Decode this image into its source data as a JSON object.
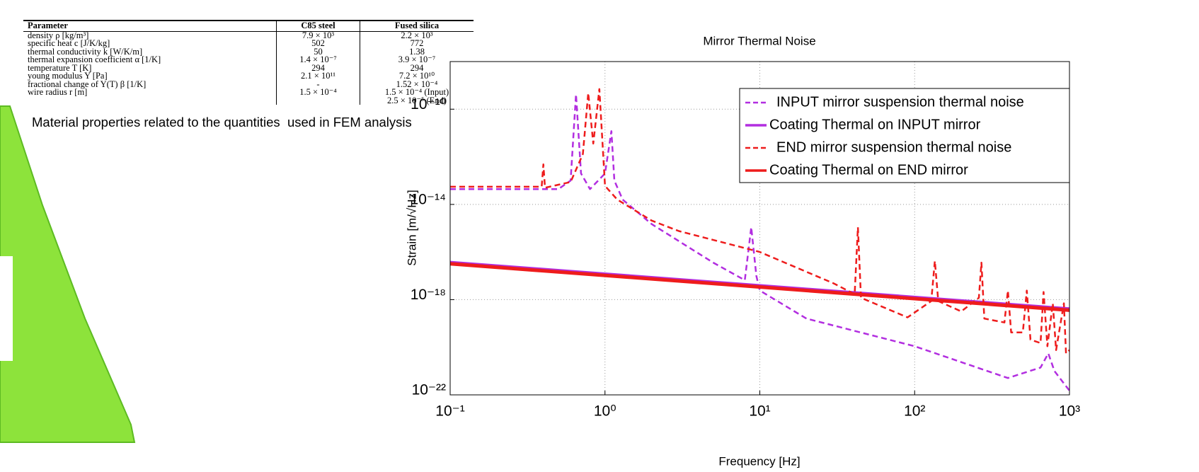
{
  "table": {
    "headers": [
      "Parameter",
      "C85 steel",
      "Fused silica"
    ],
    "rows": [
      [
        "density ρ [kg/m³]",
        "7.9 × 10³",
        "2.2 × 10³"
      ],
      [
        "specific heat c [J/K/kg]",
        "502",
        "772"
      ],
      [
        "thermal conductivity k [W/K/m]",
        "50",
        "1.38"
      ],
      [
        "thermal expansion coefficient α [1/K]",
        "1.4 × 10⁻⁷",
        "3.9 × 10⁻⁷"
      ],
      [
        "temperature T [K]",
        "294",
        "294"
      ],
      [
        "young modulus Y [Pa]",
        "2.1 × 10¹¹",
        "7.2 × 10¹⁰"
      ],
      [
        "fractional change of Y(T) β [1/K]",
        "-",
        "1.52 × 10⁻⁴"
      ],
      [
        "wire radius r [m]",
        "1.5 × 10⁻⁴",
        [
          "1.5 × 10⁻⁴ (Input)",
          "2.5 × 10⁻⁵ (End)"
        ]
      ]
    ]
  },
  "caption": "Material properties related to the quantities  used in FEM analysis",
  "chart_data": {
    "type": "line",
    "title": "Mirror Thermal Noise",
    "x_label": "Frequency [Hz]",
    "y_label": "Strain [m/√Hz]",
    "xscale": "log",
    "yscale": "log",
    "grid": true,
    "legend": "upper right",
    "xlim": [
      0.1,
      1000
    ],
    "ylim": [
      1e-22,
      1e-08
    ],
    "xticks": [
      {
        "value": 0.1,
        "label": "10⁻¹"
      },
      {
        "value": 1,
        "label": "10⁰"
      },
      {
        "value": 10,
        "label": "10¹"
      },
      {
        "value": 100,
        "label": "10²"
      },
      {
        "value": 1000,
        "label": "10³"
      }
    ],
    "yticks": [
      {
        "value": 1e-22,
        "label": "10⁻²²"
      },
      {
        "value": 1e-18,
        "label": "10⁻¹⁸"
      },
      {
        "value": 1e-14,
        "label": "10⁻¹⁴"
      },
      {
        "value": 1e-10,
        "label": "10⁻¹⁰"
      }
    ],
    "series": [
      {
        "name": "INPUT mirror suspension thermal noise",
        "color": "#b22ee0",
        "style": "dashed",
        "x": [
          0.1,
          0.5,
          0.6,
          0.65,
          0.7,
          0.8,
          1.0,
          1.1,
          1.15,
          1.3,
          2,
          5,
          8,
          8.8,
          9.5,
          10,
          20,
          100,
          400,
          650,
          730,
          800,
          1000
        ],
        "values": [
          4.4e-14,
          4.4e-14,
          1e-13,
          4.2e-10,
          2e-13,
          4.4e-14,
          2e-13,
          1.2e-11,
          1e-13,
          1.6e-14,
          1.5e-15,
          3.6e-17,
          6.6e-18,
          1.1e-15,
          1e-17,
          2.4e-18,
          1.6e-19,
          1.1e-20,
          5.1e-22,
          1.4e-21,
          5.5e-21,
          1e-21,
          1.5e-22
        ]
      },
      {
        "name": "Coating Thermal on INPUT mirror",
        "color": "#b22ee0",
        "style": "solid",
        "x": [
          0.1,
          1000
        ],
        "values": [
          3.6e-17,
          4e-19
        ]
      },
      {
        "name": "END mirror suspension thermal noise",
        "color": "#ee1c1c",
        "style": "dashed",
        "x": [
          0.1,
          0.39,
          0.4,
          0.41,
          0.6,
          0.72,
          0.78,
          0.84,
          0.92,
          1.0,
          1.2,
          2,
          3,
          10,
          30,
          41,
          43,
          45,
          90,
          128,
          135,
          142,
          200,
          260,
          270,
          282,
          380,
          400,
          420,
          500,
          530,
          560,
          650,
          680,
          720,
          780,
          820,
          920,
          950,
          1000
        ],
        "values": [
          5.5e-14,
          5.5e-14,
          4.8e-13,
          5e-14,
          8.7e-14,
          1.3e-12,
          4.8e-10,
          3.6e-12,
          7e-10,
          6e-14,
          1.6e-14,
          2.1e-15,
          7.6e-16,
          1e-16,
          4.8e-18,
          1.7e-18,
          1.1e-15,
          1.2e-18,
          1.8e-19,
          8.7e-19,
          4.2e-17,
          8.7e-19,
          3.2e-19,
          1.2e-18,
          3.6e-17,
          1.6e-19,
          1.1e-19,
          2.4e-18,
          4.2e-20,
          4.2e-20,
          2.4e-18,
          2.1e-20,
          1.5e-20,
          2.1e-18,
          1.1e-20,
          7e-19,
          7.6e-21,
          7e-19,
          5.5e-21,
          7.6e-21
        ]
      },
      {
        "name": "Coating Thermal on END mirror",
        "color": "#ee1c1c",
        "style": "solid",
        "x": [
          0.1,
          1000
        ],
        "values": [
          3.2e-17,
          3.6e-19
        ]
      }
    ]
  }
}
